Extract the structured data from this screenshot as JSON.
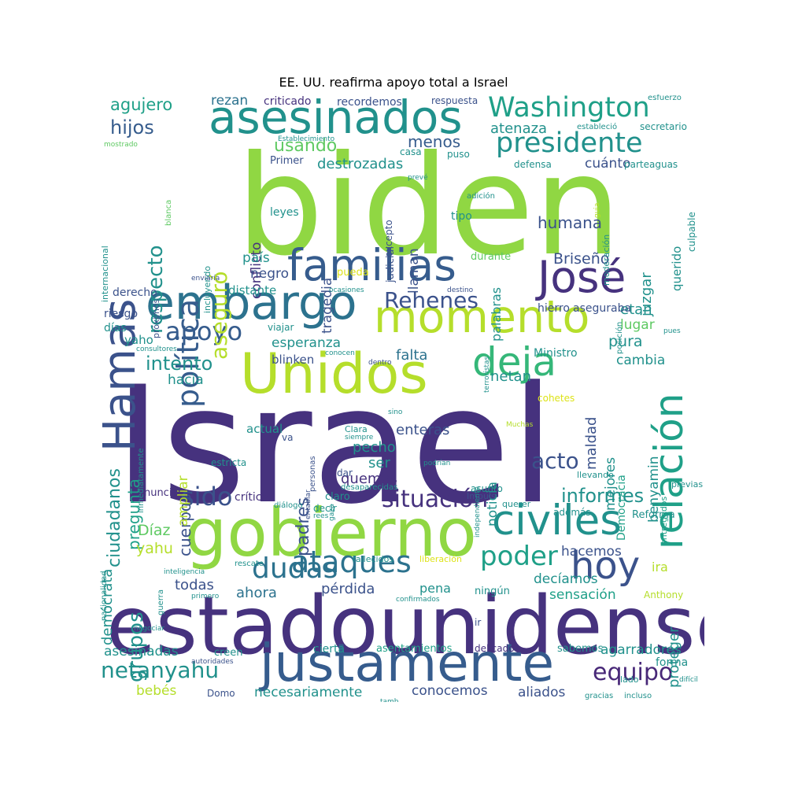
{
  "title": "EE. UU. reafirma apoyo total a Israel",
  "colors": {
    "navy": "#46327e",
    "indigo": "#3b528b",
    "blue": "#365c8d",
    "steel": "#2c728e",
    "teal": "#21918c",
    "sea": "#1fa088",
    "green": "#35b779",
    "lime": "#5ec962",
    "yellowgreen": "#90d743",
    "lightgreen": "#b5de2b",
    "yellow": "#dde318",
    "purple": "#482878"
  },
  "words": [
    {
      "text": "Israel",
      "color": "navy"
    },
    {
      "text": "biden",
      "color": "yellowgreen"
    },
    {
      "text": "estadounidense",
      "color": "navy"
    },
    {
      "text": "gobierno",
      "color": "yellowgreen"
    },
    {
      "text": "justamente",
      "color": "blue"
    },
    {
      "text": "Unidos",
      "color": "lightgreen"
    },
    {
      "text": "momento",
      "color": "lightgreen"
    },
    {
      "text": "embargo",
      "color": "steel"
    },
    {
      "text": "asesinados",
      "color": "teal"
    },
    {
      "text": "familias",
      "color": "blue"
    },
    {
      "text": "civiles",
      "color": "teal"
    },
    {
      "text": "relación",
      "color": "sea"
    },
    {
      "text": "Hamas",
      "color": "indigo"
    },
    {
      "text": "José",
      "color": "navy"
    },
    {
      "text": "deja",
      "color": "green"
    },
    {
      "text": "Washington",
      "color": "sea"
    },
    {
      "text": "presidente",
      "color": "teal"
    },
    {
      "text": "política",
      "color": "blue"
    },
    {
      "text": "hoy",
      "color": "indigo"
    },
    {
      "text": "ataques",
      "color": "steel"
    },
    {
      "text": "dudas",
      "color": "steel"
    },
    {
      "text": "poder",
      "color": "sea"
    },
    {
      "text": "situación",
      "color": "navy"
    },
    {
      "text": "Rehenes",
      "color": "indigo"
    },
    {
      "text": "apoyo",
      "color": "blue"
    },
    {
      "text": "sido",
      "color": "indigo"
    },
    {
      "text": "netanyahu",
      "color": "teal"
    },
    {
      "text": "equipo",
      "color": "purple"
    },
    {
      "text": "respecto",
      "color": "teal"
    },
    {
      "text": "aseguró",
      "color": "lightgreen"
    },
    {
      "text": "grupos",
      "color": "teal"
    },
    {
      "text": "acto",
      "color": "indigo"
    },
    {
      "text": "informes",
      "color": "teal"
    },
    {
      "text": "intento",
      "color": "teal"
    },
    {
      "text": "hijos",
      "color": "blue"
    },
    {
      "text": "agujero",
      "color": "sea"
    },
    {
      "text": "rezan",
      "color": "steel"
    },
    {
      "text": "criticado",
      "color": "navy"
    },
    {
      "text": "recordemos",
      "color": "indigo"
    },
    {
      "text": "respuesta",
      "color": "indigo"
    },
    {
      "text": "esfuerzo",
      "color": "teal"
    },
    {
      "text": "atenaza",
      "color": "teal"
    },
    {
      "text": "secretario",
      "color": "teal"
    },
    {
      "text": "usando",
      "color": "lime"
    },
    {
      "text": "menos",
      "color": "blue"
    },
    {
      "text": "cuánto",
      "color": "indigo"
    },
    {
      "text": "destrozadas",
      "color": "teal"
    },
    {
      "text": "parteaguas",
      "color": "teal"
    },
    {
      "text": "humana",
      "color": "indigo"
    },
    {
      "text": "juzgar",
      "color": "teal"
    },
    {
      "text": "querido",
      "color": "teal"
    },
    {
      "text": "culpable",
      "color": "teal"
    },
    {
      "text": "conflicto",
      "color": "navy"
    },
    {
      "text": "tragedia",
      "color": "indigo"
    },
    {
      "text": "llaman",
      "color": "indigo"
    },
    {
      "text": "palabras",
      "color": "teal"
    },
    {
      "text": "judicial",
      "color": "indigo"
    },
    {
      "text": "leyes",
      "color": "teal"
    },
    {
      "text": "tipo",
      "color": "teal"
    },
    {
      "text": "Briseño",
      "color": "indigo"
    },
    {
      "text": "país",
      "color": "teal"
    },
    {
      "text": "negro",
      "color": "indigo"
    },
    {
      "text": "etan",
      "color": "teal"
    },
    {
      "text": "lugar",
      "color": "lime"
    },
    {
      "text": "pura",
      "color": "teal"
    },
    {
      "text": "cambia",
      "color": "teal"
    },
    {
      "text": "esperanza",
      "color": "teal"
    },
    {
      "text": "falta",
      "color": "steel"
    },
    {
      "text": "hacia",
      "color": "teal"
    },
    {
      "text": "maldad",
      "color": "indigo"
    },
    {
      "text": "netan",
      "color": "teal"
    },
    {
      "text": "benyamin",
      "color": "teal"
    },
    {
      "text": "mejores",
      "color": "teal"
    },
    {
      "text": "noticia",
      "color": "teal"
    },
    {
      "text": "Democracia",
      "color": "sea"
    },
    {
      "text": "ciudadanos",
      "color": "teal"
    },
    {
      "text": "cuerpos",
      "color": "indigo"
    },
    {
      "text": "padres",
      "color": "indigo"
    },
    {
      "text": "pregunta",
      "color": "sea"
    },
    {
      "text": "ampliar",
      "color": "lightgreen"
    },
    {
      "text": "enteras",
      "color": "indigo"
    },
    {
      "text": "pecho",
      "color": "teal"
    },
    {
      "text": "ser",
      "color": "teal"
    },
    {
      "text": "quemos",
      "color": "navy"
    },
    {
      "text": "actual",
      "color": "teal"
    },
    {
      "text": "críticas",
      "color": "navy"
    },
    {
      "text": "demócrata",
      "color": "teal"
    },
    {
      "text": "Díaz",
      "color": "lime"
    },
    {
      "text": "yahu",
      "color": "lightgreen"
    },
    {
      "text": "todas",
      "color": "indigo"
    },
    {
      "text": "ahora",
      "color": "steel"
    },
    {
      "text": "pérdida",
      "color": "indigo"
    },
    {
      "text": "pena",
      "color": "teal"
    },
    {
      "text": "hacemos",
      "color": "indigo"
    },
    {
      "text": "decíamos",
      "color": "teal"
    },
    {
      "text": "sensación",
      "color": "sea"
    },
    {
      "text": "ira",
      "color": "lightgreen"
    },
    {
      "text": "proteger",
      "color": "teal"
    },
    {
      "text": "asesinadas",
      "color": "teal"
    },
    {
      "text": "creen",
      "color": "teal"
    },
    {
      "text": "cierta",
      "color": "teal"
    },
    {
      "text": "asentamientos",
      "color": "sea"
    },
    {
      "text": "delicado",
      "color": "navy"
    },
    {
      "text": "sabemos",
      "color": "teal"
    },
    {
      "text": "agarradores",
      "color": "teal"
    },
    {
      "text": "bebés",
      "color": "lightgreen"
    },
    {
      "text": "necesariamente",
      "color": "teal"
    },
    {
      "text": "conocemos",
      "color": "indigo"
    },
    {
      "text": "aliados",
      "color": "indigo"
    },
    {
      "text": "forma",
      "color": "teal"
    },
    {
      "text": "lado",
      "color": "teal"
    },
    {
      "text": "Domo",
      "color": "indigo"
    },
    {
      "text": "viajar",
      "color": "teal"
    },
    {
      "text": "riesgo",
      "color": "indigo"
    },
    {
      "text": "días",
      "color": "teal"
    },
    {
      "text": "derecho",
      "color": "indigo"
    },
    {
      "text": "distante",
      "color": "teal"
    },
    {
      "text": "hierro",
      "color": "indigo"
    },
    {
      "text": "aseguraba",
      "color": "indigo"
    },
    {
      "text": "Ministro",
      "color": "teal"
    },
    {
      "text": "blinken",
      "color": "indigo"
    },
    {
      "text": "durante",
      "color": "lime"
    },
    {
      "text": "Primer",
      "color": "indigo"
    },
    {
      "text": "casa",
      "color": "teal"
    },
    {
      "text": "puso",
      "color": "teal"
    },
    {
      "text": "defensa",
      "color": "teal"
    },
    {
      "text": "pueda",
      "color": "yellow"
    },
    {
      "text": "yaho",
      "color": "teal"
    },
    {
      "text": "Clara",
      "color": "teal"
    },
    {
      "text": "va",
      "color": "indigo"
    },
    {
      "text": "estricta",
      "color": "teal"
    },
    {
      "text": "anunció",
      "color": "navy"
    },
    {
      "text": "claro",
      "color": "teal"
    },
    {
      "text": "asunto",
      "color": "teal"
    },
    {
      "text": "dar",
      "color": "indigo"
    },
    {
      "text": "decir",
      "color": "teal"
    },
    {
      "text": "además",
      "color": "teal"
    },
    {
      "text": "Reforma",
      "color": "teal"
    },
    {
      "text": "llevando",
      "color": "teal"
    },
    {
      "text": "previas",
      "color": "teal"
    },
    {
      "text": "querer",
      "color": "teal"
    },
    {
      "text": "Impuls",
      "color": "indigo"
    },
    {
      "text": "ningún",
      "color": "teal"
    },
    {
      "text": "fallecidos",
      "color": "teal"
    },
    {
      "text": "liberación",
      "color": "yellow"
    },
    {
      "text": "Anthony",
      "color": "lightgreen"
    },
    {
      "text": "ir",
      "color": "indigo"
    },
    {
      "text": "cohetes",
      "color": "yellow"
    },
    {
      "text": "Establecimiento",
      "color": "teal"
    },
    {
      "text": "estableció",
      "color": "teal"
    },
    {
      "text": "mostrado",
      "color": "lime"
    },
    {
      "text": "internacional",
      "color": "teal"
    },
    {
      "text": "nacionalidad",
      "color": "teal"
    },
    {
      "text": "inmediatamente",
      "color": "teal"
    },
    {
      "text": "independiente",
      "color": "teal"
    },
    {
      "text": "terroristas",
      "color": "teal"
    },
    {
      "text": "entregados",
      "color": "sea"
    },
    {
      "text": "moderación",
      "color": "teal"
    },
    {
      "text": "posición",
      "color": "teal"
    },
    {
      "text": "guerra",
      "color": "teal"
    },
    {
      "text": "excepto",
      "color": "indigo"
    },
    {
      "text": "incluyendo",
      "color": "teal"
    },
    {
      "text": "próximos",
      "color": "indigo"
    },
    {
      "text": "blanca",
      "color": "lime"
    },
    {
      "text": "personas",
      "color": "indigo"
    },
    {
      "text": "entablar",
      "color": "indigo"
    },
    {
      "text": "sino",
      "color": "teal"
    },
    {
      "text": "siempre",
      "color": "teal"
    },
    {
      "text": "Muchas",
      "color": "lightgreen"
    },
    {
      "text": "podrían",
      "color": "teal"
    },
    {
      "text": "desaparecidas",
      "color": "teal"
    },
    {
      "text": "diálogo",
      "color": "teal"
    },
    {
      "text": "gaza",
      "color": "teal"
    },
    {
      "text": "rees",
      "color": "teal"
    },
    {
      "text": "consultores",
      "color": "teal"
    },
    {
      "text": "enviaría",
      "color": "indigo"
    },
    {
      "text": "ocasiones",
      "color": "teal"
    },
    {
      "text": "destino",
      "color": "indigo"
    },
    {
      "text": "conocen",
      "color": "teal"
    },
    {
      "text": "dentro",
      "color": "indigo"
    },
    {
      "text": "pues",
      "color": "teal"
    },
    {
      "text": "prevé",
      "color": "teal"
    },
    {
      "text": "adición",
      "color": "teal"
    },
    {
      "text": "guia",
      "color": "lightgreen"
    },
    {
      "text": "inteligencia",
      "color": "teal"
    },
    {
      "text": "rescate",
      "color": "teal"
    },
    {
      "text": "primero",
      "color": "teal"
    },
    {
      "text": "confirmados",
      "color": "teal"
    },
    {
      "text": "negociar",
      "color": "teal"
    },
    {
      "text": "autoridades",
      "color": "indigo"
    },
    {
      "text": "tamb",
      "color": "teal"
    },
    {
      "text": "gracias",
      "color": "teal"
    },
    {
      "text": "incluso",
      "color": "teal"
    },
    {
      "text": "difícil",
      "color": "teal"
    }
  ]
}
